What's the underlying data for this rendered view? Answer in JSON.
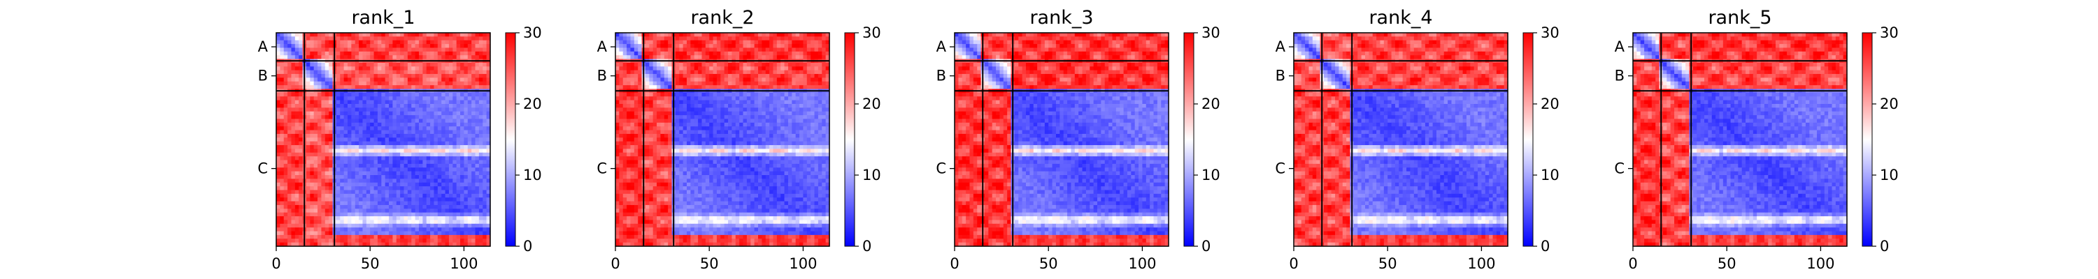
{
  "chart_data": [
    {
      "type": "heatmap",
      "title": "rank_1",
      "x_ticks": [
        0,
        50,
        100
      ],
      "xlim": [
        0,
        114
      ],
      "chain_labels": [
        "A",
        "B",
        "C"
      ],
      "chain_boundaries": [
        15,
        31
      ],
      "colorbar": {
        "min": 0,
        "max": 30,
        "ticks": [
          0,
          10,
          20,
          30
        ],
        "colors": [
          "#0000ff",
          "#ffffff",
          "#ff0000"
        ]
      },
      "values": {
        "intra_chain_median": 4,
        "A_B_block": 25,
        "A_C_block": 26,
        "B_C_block": 25,
        "C_C_block": 6,
        "C_C_white_bands_x": [
          63,
          100
        ],
        "C_C_white_band_level": 18
      }
    },
    {
      "type": "heatmap",
      "title": "rank_2",
      "x_ticks": [
        0,
        50,
        100
      ],
      "xlim": [
        0,
        114
      ],
      "chain_labels": [
        "A",
        "B",
        "C"
      ],
      "chain_boundaries": [
        15,
        31
      ],
      "colorbar": {
        "min": 0,
        "max": 30,
        "ticks": [
          0,
          10,
          20,
          30
        ],
        "colors": [
          "#0000ff",
          "#ffffff",
          "#ff0000"
        ]
      },
      "values": {
        "intra_chain_median": 4,
        "A_B_block": 26,
        "A_C_block": 27,
        "B_C_block": 26,
        "C_C_block": 6,
        "C_C_white_bands_x": [
          63,
          100
        ],
        "C_C_white_band_level": 18
      }
    },
    {
      "type": "heatmap",
      "title": "rank_3",
      "x_ticks": [
        0,
        50,
        100
      ],
      "xlim": [
        0,
        114
      ],
      "chain_labels": [
        "A",
        "B",
        "C"
      ],
      "chain_boundaries": [
        15,
        31
      ],
      "colorbar": {
        "min": 0,
        "max": 30,
        "ticks": [
          0,
          10,
          20,
          30
        ],
        "colors": [
          "#0000ff",
          "#ffffff",
          "#ff0000"
        ]
      },
      "values": {
        "intra_chain_median": 4,
        "A_B_block": 26,
        "A_C_block": 27,
        "B_C_block": 27,
        "C_C_block": 6,
        "C_C_white_bands_x": [
          63,
          100
        ],
        "C_C_white_band_level": 18
      }
    },
    {
      "type": "heatmap",
      "title": "rank_4",
      "x_ticks": [
        0,
        50,
        100
      ],
      "xlim": [
        0,
        114
      ],
      "chain_labels": [
        "A",
        "B",
        "C"
      ],
      "chain_boundaries": [
        15,
        31
      ],
      "colorbar": {
        "min": 0,
        "max": 30,
        "ticks": [
          0,
          10,
          20,
          30
        ],
        "colors": [
          "#0000ff",
          "#ffffff",
          "#ff0000"
        ]
      },
      "values": {
        "intra_chain_median": 4,
        "A_B_block": 25,
        "A_C_block": 26,
        "B_C_block": 26,
        "C_C_block": 6,
        "C_C_white_bands_x": [
          63,
          100
        ],
        "C_C_white_band_level": 18
      }
    },
    {
      "type": "heatmap",
      "title": "rank_5",
      "x_ticks": [
        0,
        50,
        100
      ],
      "xlim": [
        0,
        114
      ],
      "chain_labels": [
        "A",
        "B",
        "C"
      ],
      "chain_boundaries": [
        15,
        31
      ],
      "colorbar": {
        "min": 0,
        "max": 30,
        "ticks": [
          0,
          10,
          20,
          30
        ],
        "colors": [
          "#0000ff",
          "#ffffff",
          "#ff0000"
        ]
      },
      "values": {
        "intra_chain_median": 4,
        "A_B_block": 26,
        "A_C_block": 27,
        "B_C_block": 26,
        "C_C_block": 6,
        "C_C_white_bands_x": [
          63,
          100
        ],
        "C_C_white_band_level": 18
      }
    }
  ]
}
